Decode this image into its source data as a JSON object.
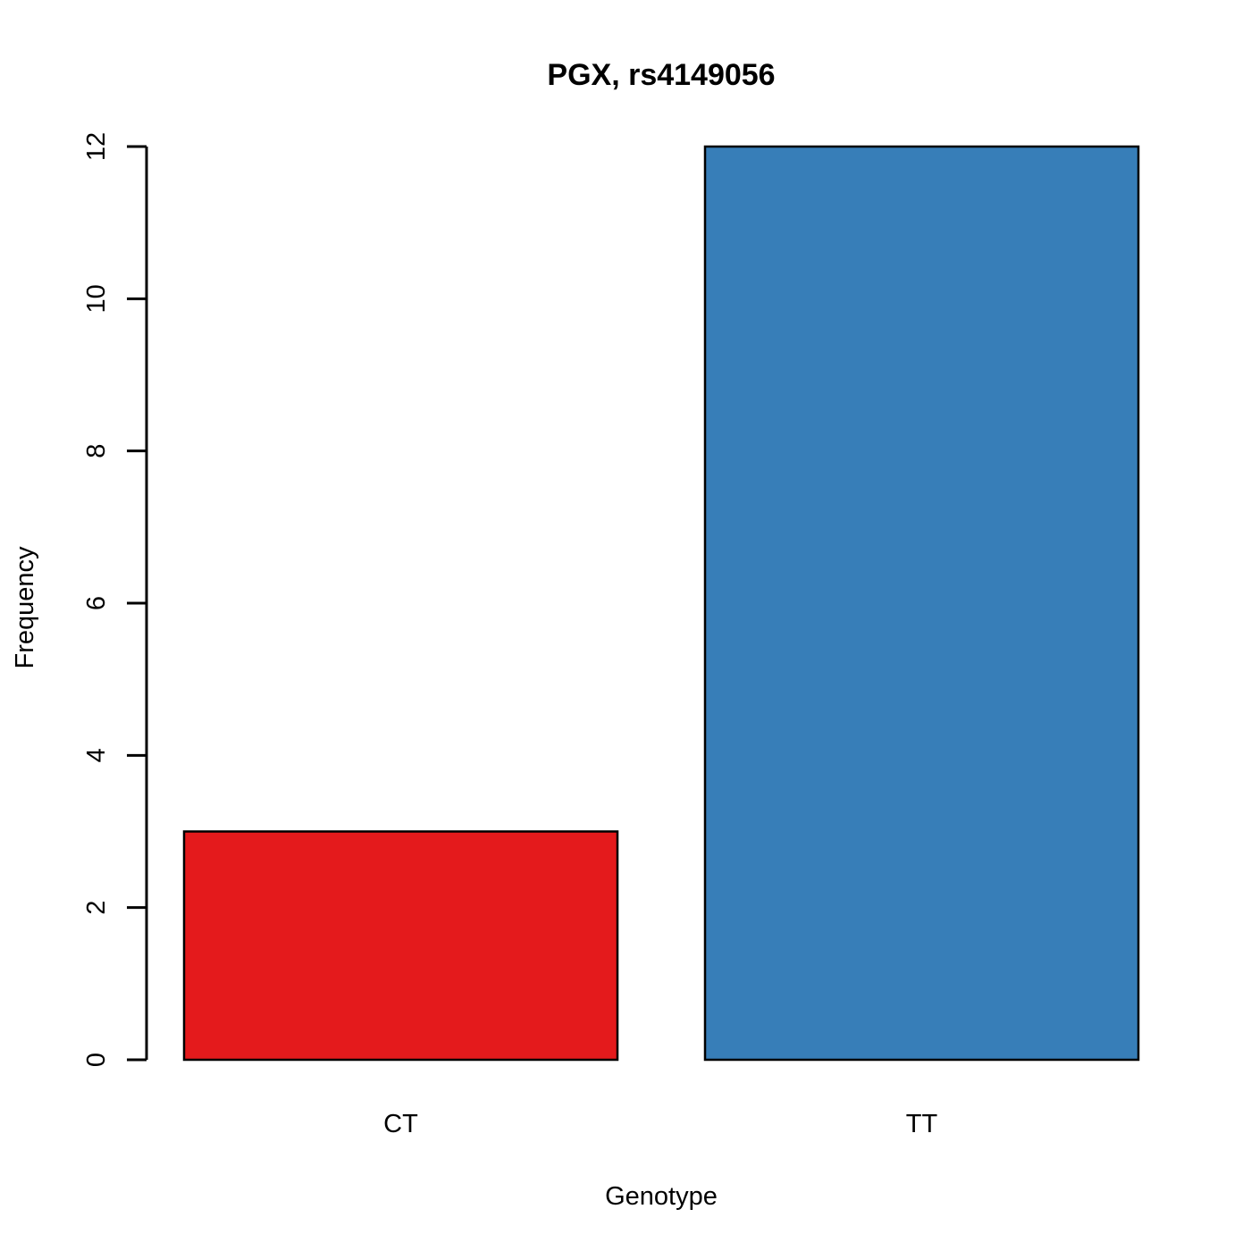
{
  "chart_data": {
    "type": "bar",
    "title": "PGX, rs4149056",
    "xlabel": "Genotype",
    "ylabel": "Frequency",
    "categories": [
      "CT",
      "TT"
    ],
    "values": [
      3,
      12
    ],
    "colors": [
      "#E41A1C",
      "#377EB8"
    ],
    "ylim": [
      0,
      12
    ],
    "yticks": [
      "0",
      "2",
      "4",
      "6",
      "8",
      "10",
      "12"
    ],
    "grid": false,
    "legend": "none"
  }
}
